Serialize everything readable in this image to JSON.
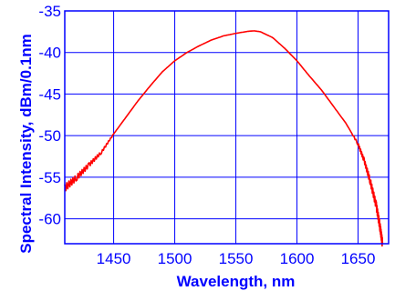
{
  "colors": {
    "axis": "#0000ff",
    "grid": "#0000ff",
    "series": "#ff0000",
    "text": "#0000ff"
  },
  "chart_data": {
    "type": "line",
    "title": "",
    "xlabel": "Wavelength, nm",
    "ylabel": "Spectral Intensity, dBm/0.1nm",
    "xlim": [
      1410,
      1675
    ],
    "ylim": [
      -63,
      -35
    ],
    "xticks": [
      1450,
      1500,
      1550,
      1600,
      1650
    ],
    "yticks": [
      -35,
      -40,
      -45,
      -50,
      -55,
      -60
    ],
    "x_tick_labels": [
      "1450",
      "1500",
      "1550",
      "1600",
      "1650"
    ],
    "y_tick_labels": [
      "-35",
      "-40",
      "-45",
      "-50",
      "-55",
      "-60"
    ],
    "grid": true,
    "series": [
      {
        "x": [
          1410,
          1420,
          1430,
          1440,
          1450,
          1460,
          1470,
          1480,
          1490,
          1500,
          1510,
          1520,
          1530,
          1540,
          1550,
          1560,
          1565,
          1570,
          1580,
          1590,
          1600,
          1610,
          1620,
          1630,
          1640,
          1650,
          1655,
          1660,
          1665,
          1668,
          1670
        ],
        "y": [
          -56.3,
          -55.0,
          -53.5,
          -52.0,
          -49.8,
          -47.8,
          -45.8,
          -44.0,
          -42.3,
          -41.0,
          -40.0,
          -39.2,
          -38.5,
          -38.0,
          -37.7,
          -37.45,
          -37.4,
          -37.5,
          -38.2,
          -39.5,
          -41.0,
          -42.8,
          -44.5,
          -46.5,
          -48.5,
          -51.0,
          -53.0,
          -55.5,
          -58.5,
          -61.0,
          -63.0
        ]
      }
    ]
  }
}
